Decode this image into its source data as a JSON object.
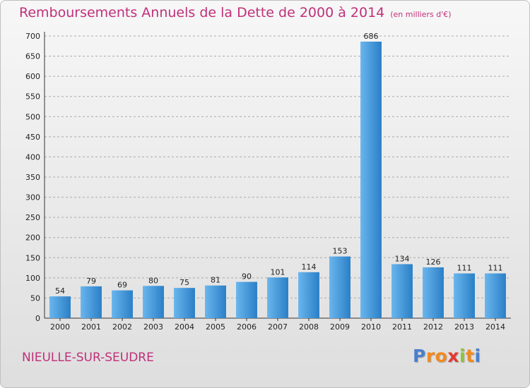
{
  "header": {
    "title": "Remboursements Annuels de la Dette de 2000 à 2014",
    "subtitle": "(en milliers d'€)"
  },
  "footer": {
    "commune": "NIEULLE-SUR-SEUDRE",
    "logo": {
      "letters": [
        "P",
        "r",
        "o",
        "x",
        "i",
        "t",
        "i"
      ]
    }
  },
  "colors": {
    "title": "#c0307a",
    "bar_light": "#6ab6ee",
    "bar_dark": "#2a7fc6",
    "grid": "#aaaaaa",
    "logo_letters": [
      "#4a7fcc",
      "#f28a1e",
      "#f28a1e",
      "#e23a2e",
      "#8bc43f",
      "#f28a1e",
      "#4a7fcc"
    ]
  },
  "chart_data": {
    "type": "bar",
    "categories": [
      "2000",
      "2001",
      "2002",
      "2003",
      "2004",
      "2005",
      "2006",
      "2007",
      "2008",
      "2009",
      "2010",
      "2011",
      "2012",
      "2013",
      "2014"
    ],
    "values": [
      54,
      79,
      69,
      80,
      75,
      81,
      90,
      101,
      114,
      153,
      686,
      134,
      126,
      111,
      111
    ],
    "title": "Remboursements Annuels de la Dette de 2000 à 2014",
    "ylim": [
      0,
      700
    ],
    "yticks": [
      0,
      50,
      100,
      150,
      200,
      250,
      300,
      350,
      400,
      450,
      500,
      550,
      600,
      650,
      700
    ],
    "grid": true,
    "data_labels": true
  }
}
